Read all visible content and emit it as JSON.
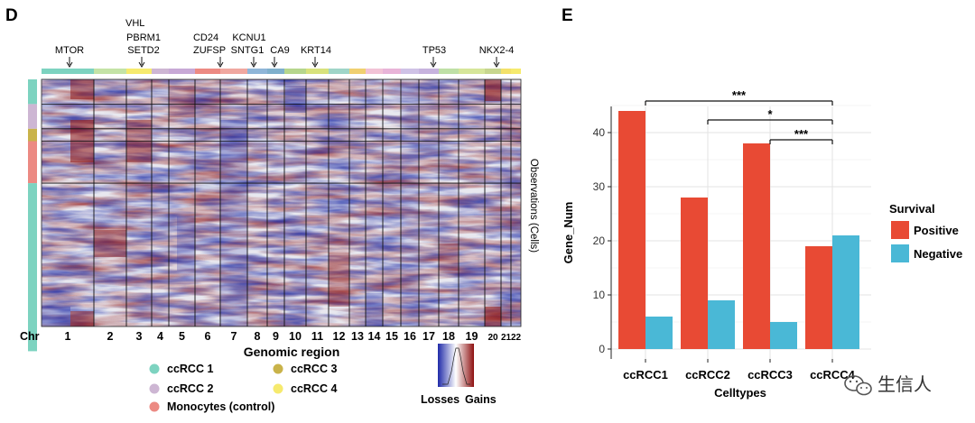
{
  "panel_d": {
    "letter": "D",
    "gene_annotations": [
      {
        "label": "MTOR",
        "chr": "1"
      },
      {
        "label": "VHL",
        "chr": "3"
      },
      {
        "label": "PBRM1",
        "chr": "3"
      },
      {
        "label": "SETD2",
        "chr": "3"
      },
      {
        "label": "CD24",
        "chr": "6"
      },
      {
        "label": "ZUFSP",
        "chr": "6"
      },
      {
        "label": "KCNU1",
        "chr": "8"
      },
      {
        "label": "SNTG1",
        "chr": "8"
      },
      {
        "label": "CA9",
        "chr": "9"
      },
      {
        "label": "KRT14",
        "chr": "11"
      },
      {
        "label": "TP53",
        "chr": "17"
      },
      {
        "label": "NKX2-4",
        "chr": "20"
      }
    ],
    "chr_prefix": "Chr",
    "chromosomes": [
      "1",
      "2",
      "3",
      "4",
      "5",
      "6",
      "7",
      "8",
      "9",
      "10",
      "11",
      "12",
      "13",
      "14",
      "15",
      "16",
      "17",
      "18",
      "19",
      "20",
      "21",
      "22"
    ],
    "xlabel": "Genomic region",
    "ylabel": "Observations (Cells)",
    "legend": [
      {
        "label": "ccRCC 1",
        "color": "#7dd3c0"
      },
      {
        "label": "ccRCC 2",
        "color": "#cdb6d3"
      },
      {
        "label": "Monocytes (control)",
        "color": "#ec8a83"
      },
      {
        "label": "ccRCC 3",
        "color": "#c9b34a"
      },
      {
        "label": "ccRCC 4",
        "color": "#f6ea6e"
      }
    ],
    "colorbar": {
      "low": "Losses",
      "high": "Gains",
      "low_color": "#1f2aa8",
      "mid_color": "#ffffff",
      "high_color": "#8e1010"
    },
    "row_groups": [
      {
        "group": "ccRCC 1",
        "color": "#7dd3c0",
        "fraction": 0.1
      },
      {
        "group": "ccRCC 2",
        "color": "#cdb6d3",
        "fraction": 0.1
      },
      {
        "group": "ccRCC 3",
        "color": "#c9b34a",
        "fraction": 0.05
      },
      {
        "group": "Monocytes (control)",
        "color": "#ec8a83",
        "fraction": 0.17
      },
      {
        "group": "ccRCC 1",
        "color": "#7dd3c0",
        "fraction": 0.68
      }
    ]
  },
  "panel_e": {
    "letter": "E",
    "chart_data": {
      "type": "bar",
      "categories": [
        "ccRCC1",
        "ccRCC2",
        "ccRCC3",
        "ccRCC4"
      ],
      "series": [
        {
          "name": "Positive",
          "color": "#e84a34",
          "values": [
            44,
            28,
            38,
            19
          ]
        },
        {
          "name": "Negative",
          "color": "#4ab8d6",
          "values": [
            6,
            9,
            5,
            21
          ]
        }
      ],
      "xlabel": "Celltypes",
      "ylabel": "Gene_Num",
      "yticks": [
        0,
        10,
        20,
        30,
        40
      ],
      "ylim": [
        0,
        46
      ],
      "legend_title": "Survival",
      "legend_position": "right",
      "significance": [
        {
          "from": "ccRCC1",
          "to": "ccRCC4",
          "label": "***"
        },
        {
          "from": "ccRCC2",
          "to": "ccRCC4",
          "label": "*"
        },
        {
          "from": "ccRCC3",
          "to": "ccRCC4",
          "label": "***"
        }
      ]
    }
  },
  "watermark": {
    "text": "生信人",
    "icon": "wechat-icon"
  }
}
